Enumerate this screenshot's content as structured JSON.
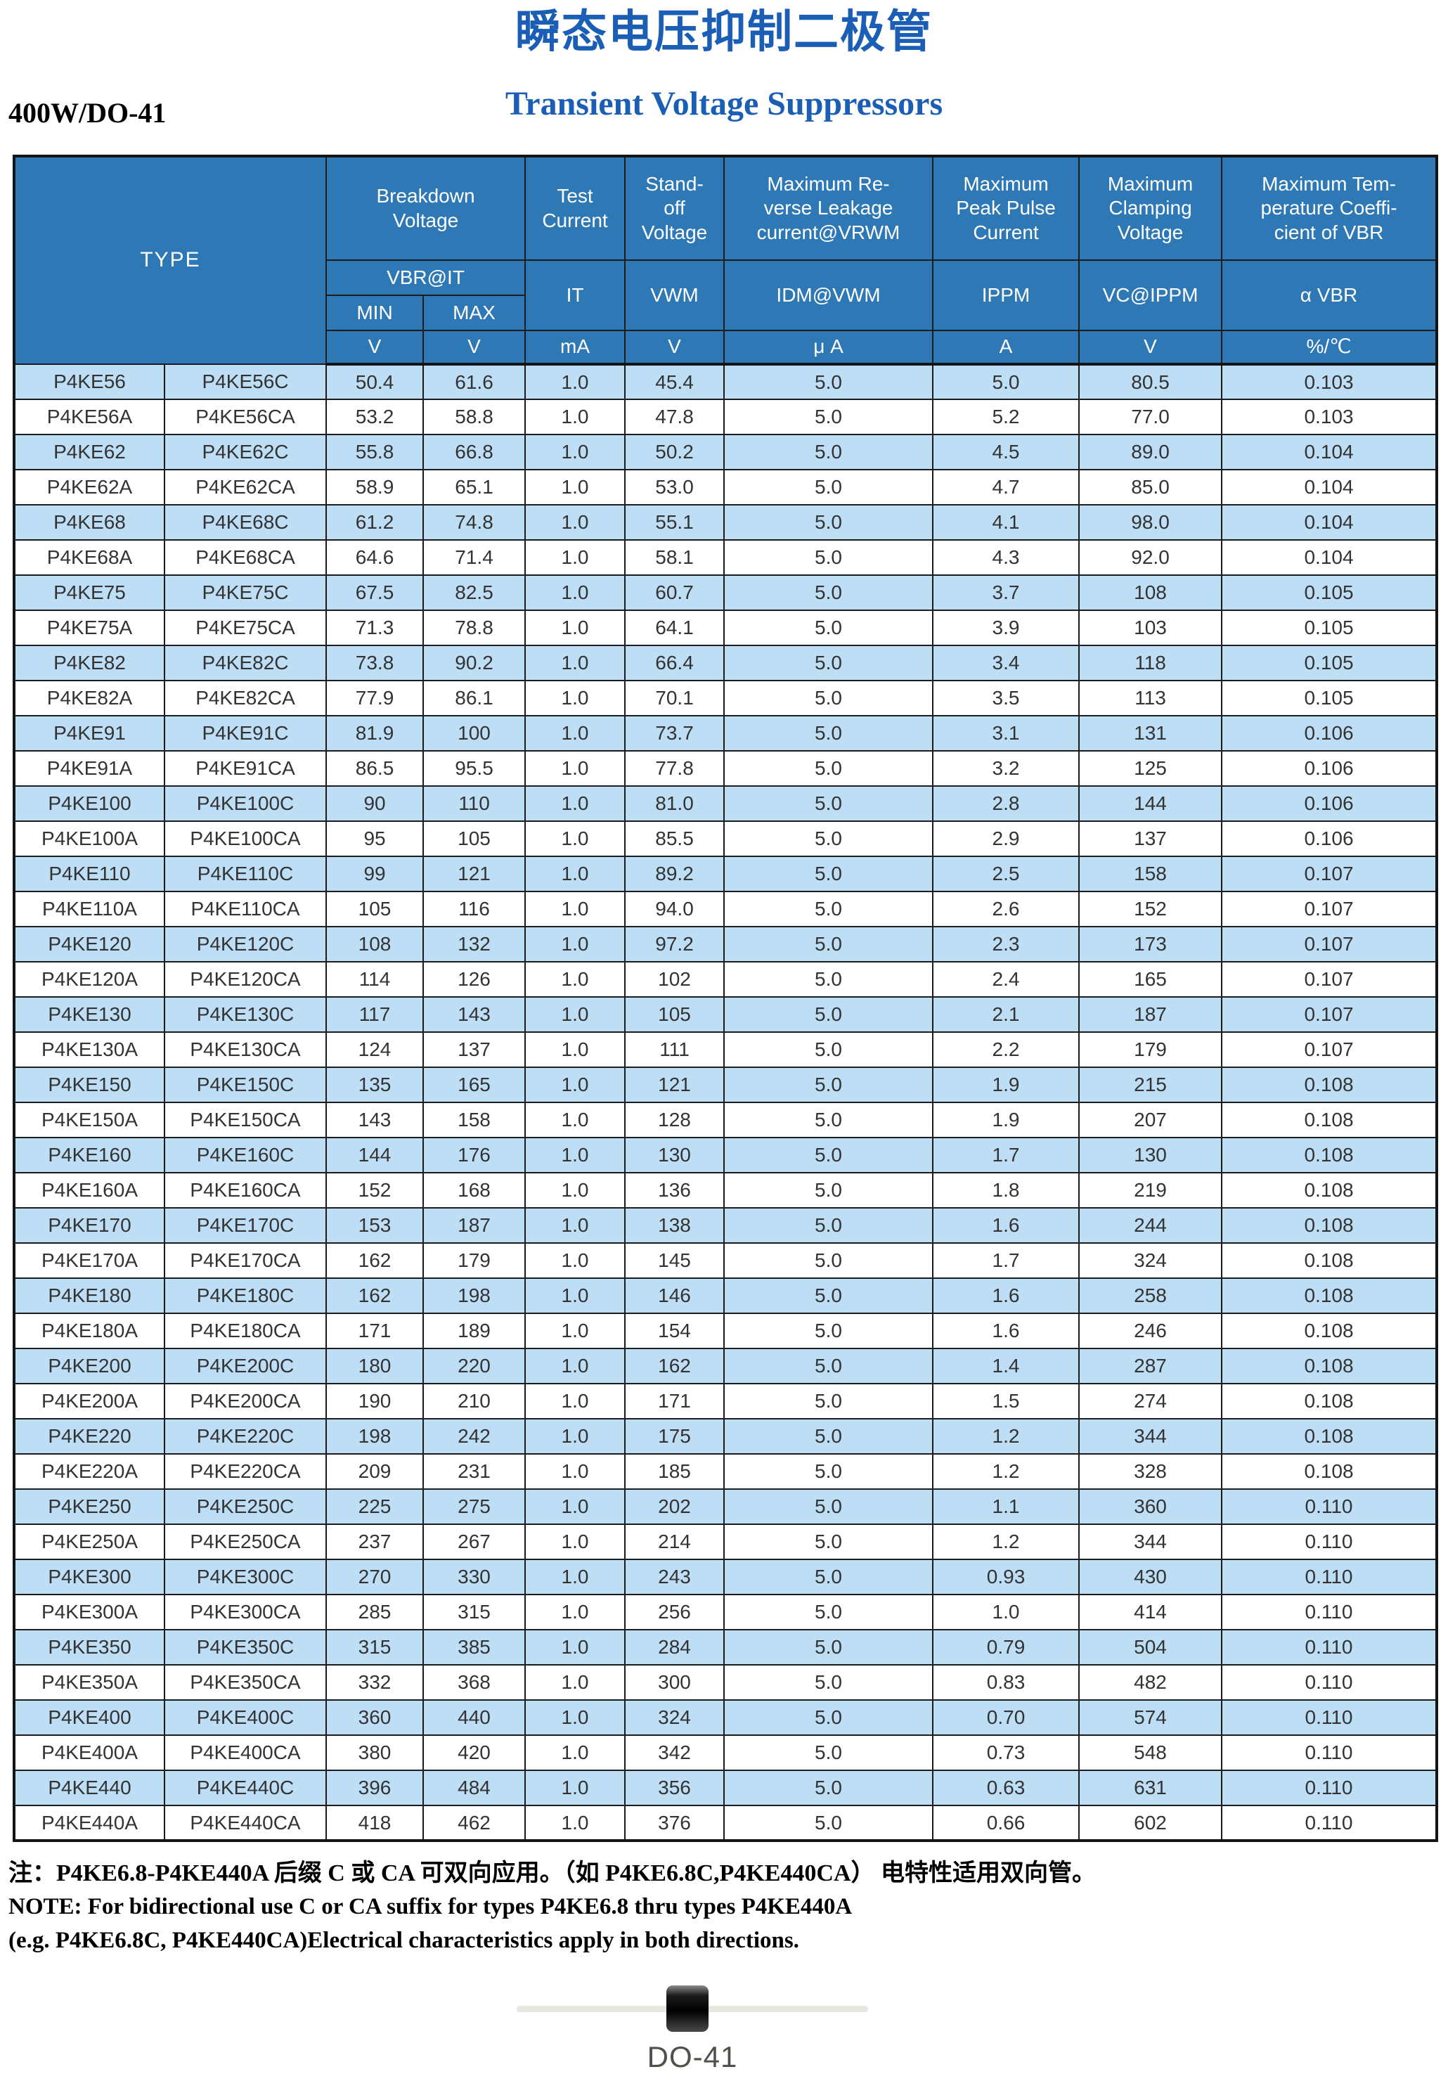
{
  "page": {
    "title_cn": "瞬态电压抑制二极管",
    "title_en": "Transient Voltage Suppressors",
    "power_package": "400W/DO-41"
  },
  "table": {
    "header": {
      "type": "TYPE",
      "breakdown": "Breakdown\nVoltage",
      "test_current": "Test\nCurrent",
      "standoff": "Stand-\noff\nVoltage",
      "leakage": "Maximum Re-\nverse Leakage\ncurrent@VRWM",
      "peak_pulse": "Maximum\nPeak Pulse\nCurrent",
      "clamping": "Maximum\nClamping\nVoltage",
      "temp_coeff": "Maximum Tem-\nperature Coeffi-\ncient of VBR",
      "vbr": "VBR@IT",
      "it": "IT",
      "vwm": "VWM",
      "idm": "IDM@VWM",
      "ippm": "IPPM",
      "vc": "VC@IPPM",
      "avbr": "α VBR",
      "min": "MIN",
      "max": "MAX"
    },
    "units": [
      "V",
      "V",
      "mA",
      "V",
      "μ A",
      "A",
      "V",
      "%/℃"
    ],
    "rows": [
      [
        "P4KE56",
        "P4KE56C",
        "50.4",
        "61.6",
        "1.0",
        "45.4",
        "5.0",
        "5.0",
        "80.5",
        "0.103"
      ],
      [
        "P4KE56A",
        "P4KE56CA",
        "53.2",
        "58.8",
        "1.0",
        "47.8",
        "5.0",
        "5.2",
        "77.0",
        "0.103"
      ],
      [
        "P4KE62",
        "P4KE62C",
        "55.8",
        "66.8",
        "1.0",
        "50.2",
        "5.0",
        "4.5",
        "89.0",
        "0.104"
      ],
      [
        "P4KE62A",
        "P4KE62CA",
        "58.9",
        "65.1",
        "1.0",
        "53.0",
        "5.0",
        "4.7",
        "85.0",
        "0.104"
      ],
      [
        "P4KE68",
        "P4KE68C",
        "61.2",
        "74.8",
        "1.0",
        "55.1",
        "5.0",
        "4.1",
        "98.0",
        "0.104"
      ],
      [
        "P4KE68A",
        "P4KE68CA",
        "64.6",
        "71.4",
        "1.0",
        "58.1",
        "5.0",
        "4.3",
        "92.0",
        "0.104"
      ],
      [
        "P4KE75",
        "P4KE75C",
        "67.5",
        "82.5",
        "1.0",
        "60.7",
        "5.0",
        "3.7",
        "108",
        "0.105"
      ],
      [
        "P4KE75A",
        "P4KE75CA",
        "71.3",
        "78.8",
        "1.0",
        "64.1",
        "5.0",
        "3.9",
        "103",
        "0.105"
      ],
      [
        "P4KE82",
        "P4KE82C",
        "73.8",
        "90.2",
        "1.0",
        "66.4",
        "5.0",
        "3.4",
        "118",
        "0.105"
      ],
      [
        "P4KE82A",
        "P4KE82CA",
        "77.9",
        "86.1",
        "1.0",
        "70.1",
        "5.0",
        "3.5",
        "113",
        "0.105"
      ],
      [
        "P4KE91",
        "P4KE91C",
        "81.9",
        "100",
        "1.0",
        "73.7",
        "5.0",
        "3.1",
        "131",
        "0.106"
      ],
      [
        "P4KE91A",
        "P4KE91CA",
        "86.5",
        "95.5",
        "1.0",
        "77.8",
        "5.0",
        "3.2",
        "125",
        "0.106"
      ],
      [
        "P4KE100",
        "P4KE100C",
        "90",
        "110",
        "1.0",
        "81.0",
        "5.0",
        "2.8",
        "144",
        "0.106"
      ],
      [
        "P4KE100A",
        "P4KE100CA",
        "95",
        "105",
        "1.0",
        "85.5",
        "5.0",
        "2.9",
        "137",
        "0.106"
      ],
      [
        "P4KE110",
        "P4KE110C",
        "99",
        "121",
        "1.0",
        "89.2",
        "5.0",
        "2.5",
        "158",
        "0.107"
      ],
      [
        "P4KE110A",
        "P4KE110CA",
        "105",
        "116",
        "1.0",
        "94.0",
        "5.0",
        "2.6",
        "152",
        "0.107"
      ],
      [
        "P4KE120",
        "P4KE120C",
        "108",
        "132",
        "1.0",
        "97.2",
        "5.0",
        "2.3",
        "173",
        "0.107"
      ],
      [
        "P4KE120A",
        "P4KE120CA",
        "114",
        "126",
        "1.0",
        "102",
        "5.0",
        "2.4",
        "165",
        "0.107"
      ],
      [
        "P4KE130",
        "P4KE130C",
        "117",
        "143",
        "1.0",
        "105",
        "5.0",
        "2.1",
        "187",
        "0.107"
      ],
      [
        "P4KE130A",
        "P4KE130CA",
        "124",
        "137",
        "1.0",
        "111",
        "5.0",
        "2.2",
        "179",
        "0.107"
      ],
      [
        "P4KE150",
        "P4KE150C",
        "135",
        "165",
        "1.0",
        "121",
        "5.0",
        "1.9",
        "215",
        "0.108"
      ],
      [
        "P4KE150A",
        "P4KE150CA",
        "143",
        "158",
        "1.0",
        "128",
        "5.0",
        "1.9",
        "207",
        "0.108"
      ],
      [
        "P4KE160",
        "P4KE160C",
        "144",
        "176",
        "1.0",
        "130",
        "5.0",
        "1.7",
        "130",
        "0.108"
      ],
      [
        "P4KE160A",
        "P4KE160CA",
        "152",
        "168",
        "1.0",
        "136",
        "5.0",
        "1.8",
        "219",
        "0.108"
      ],
      [
        "P4KE170",
        "P4KE170C",
        "153",
        "187",
        "1.0",
        "138",
        "5.0",
        "1.6",
        "244",
        "0.108"
      ],
      [
        "P4KE170A",
        "P4KE170CA",
        "162",
        "179",
        "1.0",
        "145",
        "5.0",
        "1.7",
        "324",
        "0.108"
      ],
      [
        "P4KE180",
        "P4KE180C",
        "162",
        "198",
        "1.0",
        "146",
        "5.0",
        "1.6",
        "258",
        "0.108"
      ],
      [
        "P4KE180A",
        "P4KE180CA",
        "171",
        "189",
        "1.0",
        "154",
        "5.0",
        "1.6",
        "246",
        "0.108"
      ],
      [
        "P4KE200",
        "P4KE200C",
        "180",
        "220",
        "1.0",
        "162",
        "5.0",
        "1.4",
        "287",
        "0.108"
      ],
      [
        "P4KE200A",
        "P4KE200CA",
        "190",
        "210",
        "1.0",
        "171",
        "5.0",
        "1.5",
        "274",
        "0.108"
      ],
      [
        "P4KE220",
        "P4KE220C",
        "198",
        "242",
        "1.0",
        "175",
        "5.0",
        "1.2",
        "344",
        "0.108"
      ],
      [
        "P4KE220A",
        "P4KE220CA",
        "209",
        "231",
        "1.0",
        "185",
        "5.0",
        "1.2",
        "328",
        "0.108"
      ],
      [
        "P4KE250",
        "P4KE250C",
        "225",
        "275",
        "1.0",
        "202",
        "5.0",
        "1.1",
        "360",
        "0.110"
      ],
      [
        "P4KE250A",
        "P4KE250CA",
        "237",
        "267",
        "1.0",
        "214",
        "5.0",
        "1.2",
        "344",
        "0.110"
      ],
      [
        "P4KE300",
        "P4KE300C",
        "270",
        "330",
        "1.0",
        "243",
        "5.0",
        "0.93",
        "430",
        "0.110"
      ],
      [
        "P4KE300A",
        "P4KE300CA",
        "285",
        "315",
        "1.0",
        "256",
        "5.0",
        "1.0",
        "414",
        "0.110"
      ],
      [
        "P4KE350",
        "P4KE350C",
        "315",
        "385",
        "1.0",
        "284",
        "5.0",
        "0.79",
        "504",
        "0.110"
      ],
      [
        "P4KE350A",
        "P4KE350CA",
        "332",
        "368",
        "1.0",
        "300",
        "5.0",
        "0.83",
        "482",
        "0.110"
      ],
      [
        "P4KE400",
        "P4KE400C",
        "360",
        "440",
        "1.0",
        "324",
        "5.0",
        "0.70",
        "574",
        "0.110"
      ],
      [
        "P4KE400A",
        "P4KE400CA",
        "380",
        "420",
        "1.0",
        "342",
        "5.0",
        "0.73",
        "548",
        "0.110"
      ],
      [
        "P4KE440",
        "P4KE440C",
        "396",
        "484",
        "1.0",
        "356",
        "5.0",
        "0.63",
        "631",
        "0.110"
      ],
      [
        "P4KE440A",
        "P4KE440CA",
        "418",
        "462",
        "1.0",
        "376",
        "5.0",
        "0.66",
        "602",
        "0.110"
      ]
    ]
  },
  "notes": {
    "line1": "注：P4KE6.8-P4KE440A 后缀 C 或 CA 可双向应用。（如 P4KE6.8C,P4KE440CA） 电特性适用双向管。",
    "line2": "NOTE: For bidirectional use C or CA suffix for types P4KE6.8 thru types P4KE440A",
    "line3": "(e.g. P4KE6.8C, P4KE440CA)Electrical characteristics apply in both directions."
  },
  "package_figure": {
    "label": "DO-41"
  },
  "colors": {
    "header_blue": "#2d78b5",
    "alt_row_blue": "#bddef5",
    "title_blue": "#1b5eb5",
    "border": "#1c1c1c"
  }
}
